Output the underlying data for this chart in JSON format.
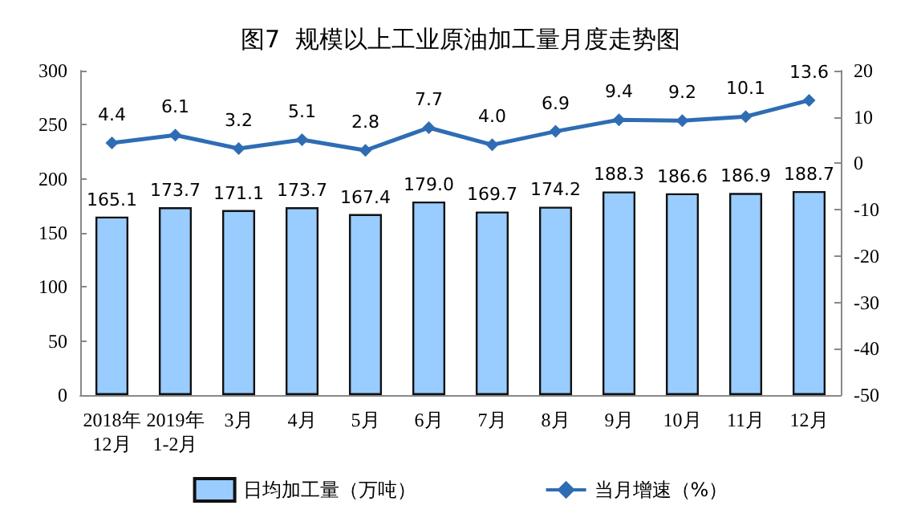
{
  "chart_data": {
    "type": "bar",
    "title": "图7  规模以上工业原油加工量月度走势图",
    "categories": [
      "2018年\n12月",
      "2019年\n1-2月",
      "3月",
      "4月",
      "5月",
      "6月",
      "7月",
      "8月",
      "9月",
      "10月",
      "11月",
      "12月"
    ],
    "series": [
      {
        "name": "日均加工量（万吨）",
        "color": "#99ccff",
        "values": [
          165.1,
          173.7,
          171.1,
          173.7,
          167.4,
          179.0,
          169.7,
          174.2,
          188.3,
          186.6,
          186.9,
          188.7
        ],
        "value_labels": [
          "165.1",
          "173.7",
          "171.1",
          "173.7",
          "167.4",
          "179.0",
          "169.7",
          "174.2",
          "188.3",
          "186.6",
          "186.9",
          "188.7"
        ]
      },
      {
        "name": "当月增速（%）",
        "type": "line",
        "axis": "y2",
        "color": "#2e6db4",
        "marker": "diamond",
        "values": [
          4.4,
          6.1,
          3.2,
          5.1,
          2.8,
          7.7,
          4.0,
          6.9,
          9.4,
          9.2,
          10.1,
          13.6
        ],
        "value_labels": [
          "4.4",
          "6.1",
          "3.2",
          "5.1",
          "2.8",
          "7.7",
          "4.0",
          "6.9",
          "9.4",
          "9.2",
          "10.1",
          "13.6"
        ]
      }
    ],
    "ylim": [
      0,
      300
    ],
    "yticks": [
      0,
      50,
      100,
      150,
      200,
      250,
      300
    ],
    "y2lim": [
      -50,
      20
    ],
    "y2ticks": [
      -50,
      -40,
      -30,
      -20,
      -10,
      0,
      10,
      20
    ],
    "grid": false,
    "legend": "bottom"
  }
}
